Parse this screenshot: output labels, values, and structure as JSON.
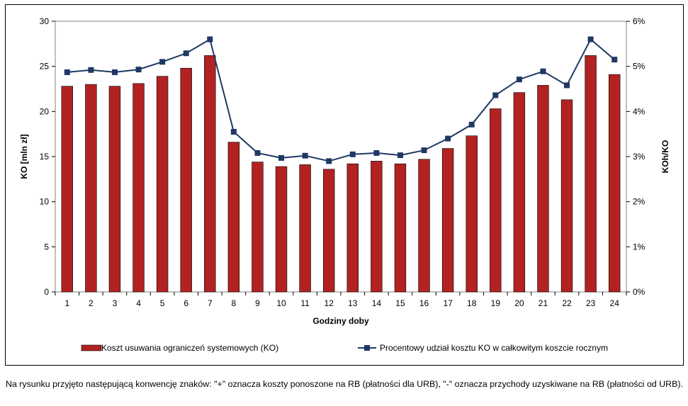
{
  "chart_data": {
    "type": "bar+line",
    "categories": [
      "1",
      "2",
      "3",
      "4",
      "5",
      "6",
      "7",
      "8",
      "9",
      "10",
      "11",
      "12",
      "13",
      "14",
      "15",
      "16",
      "17",
      "18",
      "19",
      "20",
      "21",
      "22",
      "23",
      "24"
    ],
    "series": [
      {
        "name": "Koszt usuwania ograniczeń systemowych (KO)",
        "type": "bar",
        "axis": "left",
        "color": "#b22222",
        "values": [
          22.8,
          23.0,
          22.8,
          23.1,
          23.9,
          24.8,
          26.2,
          16.6,
          14.4,
          13.9,
          14.1,
          13.6,
          14.2,
          14.5,
          14.2,
          14.7,
          15.9,
          17.3,
          20.3,
          22.1,
          22.9,
          21.3,
          26.2,
          24.1
        ]
      },
      {
        "name": "Procentowy udział kosztu KO w całkowitym koszcie rocznym",
        "type": "line",
        "axis": "right",
        "color": "#1f3864",
        "values": [
          4.87,
          4.92,
          4.87,
          4.93,
          5.1,
          5.29,
          5.6,
          3.55,
          3.08,
          2.97,
          3.02,
          2.9,
          3.05,
          3.08,
          3.03,
          3.14,
          3.4,
          3.71,
          4.36,
          4.71,
          4.89,
          4.58,
          5.6,
          5.15
        ]
      }
    ],
    "xlabel": "Godziny doby",
    "ylabel": "KO [mln zł]",
    "ylabel_right": "KOh/KO",
    "ylim": [
      0,
      30
    ],
    "yticks": [
      "0",
      "5",
      "10",
      "15",
      "20",
      "25",
      "30"
    ],
    "ylim_right": [
      0,
      6
    ],
    "yticks_right": [
      "0%",
      "1%",
      "2%",
      "3%",
      "4%",
      "5%",
      "6%"
    ],
    "grid": false,
    "legend_position": "bottom"
  },
  "footnote": "Na rysunku przyjęto następującą konwencję znaków: \"+\" oznacza koszty ponoszone na RB (płatności dla URB), \"-\" oznacza przychody uzyskiwane na RB (płatności od URB)."
}
